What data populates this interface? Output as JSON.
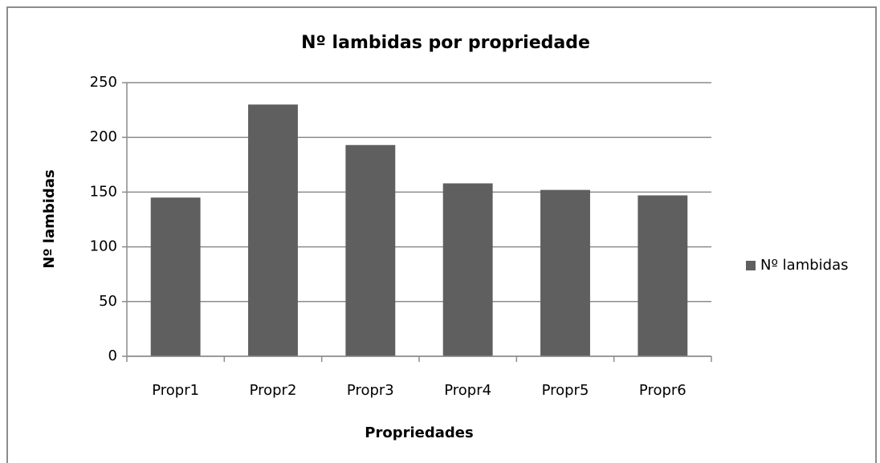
{
  "chart_data": {
    "type": "bar",
    "title": "Nº lambidas por propriedade",
    "x_label": "Propriedades",
    "y_label": "Nº lambidas",
    "categories": [
      "Propr1",
      "Propr2",
      "Propr3",
      "Propr4",
      "Propr5",
      "Propr6"
    ],
    "series": [
      {
        "name": "Nº lambidas",
        "color": "#5f5f5f",
        "values": [
          145,
          230,
          193,
          158,
          152,
          147
        ]
      }
    ],
    "ylim": [
      0,
      250
    ],
    "yticks": [
      0,
      50,
      100,
      150,
      200,
      250
    ],
    "grid": true,
    "legend": "right"
  }
}
